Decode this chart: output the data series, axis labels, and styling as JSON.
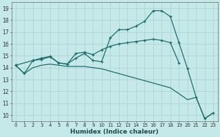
{
  "xlabel": "Humidex (Indice chaleur)",
  "bg_color": "#c5e8e8",
  "grid_color": "#a8d0d0",
  "line_color": "#1a6b6b",
  "xlim": [
    -0.5,
    23.5
  ],
  "ylim": [
    9.5,
    19.5
  ],
  "xticks": [
    0,
    1,
    2,
    3,
    4,
    5,
    6,
    7,
    8,
    9,
    10,
    11,
    12,
    13,
    14,
    15,
    16,
    17,
    18,
    19,
    20,
    21,
    22,
    23
  ],
  "yticks": [
    10,
    11,
    12,
    13,
    14,
    15,
    16,
    17,
    18,
    19
  ],
  "series1": {
    "points": [
      [
        0,
        14.2
      ],
      [
        1,
        13.5
      ],
      [
        2,
        14.6
      ],
      [
        3,
        14.7
      ],
      [
        4,
        14.9
      ],
      [
        5,
        14.4
      ],
      [
        6,
        14.3
      ],
      [
        7,
        14.8
      ],
      [
        8,
        15.2
      ],
      [
        9,
        14.6
      ],
      [
        10,
        14.5
      ],
      [
        11,
        16.5
      ],
      [
        12,
        17.2
      ],
      [
        13,
        17.2
      ],
      [
        14,
        17.5
      ],
      [
        15,
        17.9
      ],
      [
        16,
        18.8
      ],
      [
        17,
        18.8
      ],
      [
        18,
        18.3
      ],
      [
        19,
        16.1
      ],
      [
        20,
        13.9
      ],
      [
        21,
        11.5
      ],
      [
        22,
        9.7
      ],
      [
        23,
        10.2
      ]
    ]
  },
  "series2": {
    "points": [
      [
        0,
        14.2
      ],
      [
        2,
        14.6
      ],
      [
        3,
        14.8
      ],
      [
        4,
        14.95
      ],
      [
        5,
        14.4
      ],
      [
        6,
        14.3
      ],
      [
        7,
        15.2
      ],
      [
        8,
        15.3
      ],
      [
        9,
        15.1
      ],
      [
        10,
        15.5
      ],
      [
        11,
        15.8
      ],
      [
        12,
        16.0
      ],
      [
        13,
        16.1
      ],
      [
        14,
        16.2
      ],
      [
        15,
        16.3
      ],
      [
        16,
        16.4
      ],
      [
        17,
        16.3
      ],
      [
        18,
        16.1
      ],
      [
        19,
        14.4
      ]
    ]
  },
  "series3": {
    "points": [
      [
        0,
        14.2
      ],
      [
        1,
        13.5
      ],
      [
        2,
        14.0
      ],
      [
        3,
        14.2
      ],
      [
        4,
        14.3
      ],
      [
        5,
        14.2
      ],
      [
        6,
        14.1
      ],
      [
        7,
        14.1
      ],
      [
        8,
        14.1
      ],
      [
        9,
        14.0
      ],
      [
        10,
        13.9
      ],
      [
        11,
        13.7
      ],
      [
        12,
        13.5
      ],
      [
        13,
        13.3
      ],
      [
        14,
        13.1
      ],
      [
        15,
        12.9
      ],
      [
        16,
        12.7
      ],
      [
        17,
        12.5
      ],
      [
        18,
        12.3
      ],
      [
        19,
        11.8
      ],
      [
        20,
        11.3
      ],
      [
        21,
        11.5
      ],
      [
        22,
        9.7
      ],
      [
        23,
        10.2
      ]
    ]
  }
}
